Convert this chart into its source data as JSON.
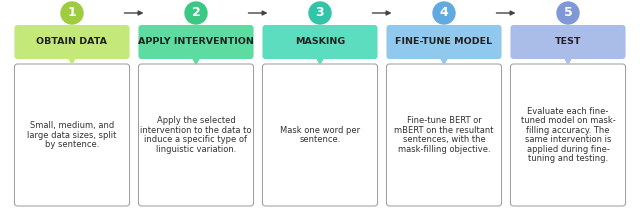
{
  "steps": [
    {
      "number": "1",
      "title": "OBTAIN DATA",
      "bubble_color": "#c5e87a",
      "circle_color": "#9ecc3e",
      "text": "Small, medium, and\nlarge data sizes, split\nby sentence.",
      "bold_words": []
    },
    {
      "number": "2",
      "title": "APPLY INTERVENTION",
      "bubble_color": "#5ddba0",
      "circle_color": "#3bc882",
      "text": "Apply the selected\nintervention to the data to\ninduce a specific type of\nlinguistic variation.",
      "bold_words": []
    },
    {
      "number": "3",
      "title": "MASKING",
      "bubble_color": "#5dddc0",
      "circle_color": "#30c4a8",
      "text": "Mask one word per\nsentence.",
      "bold_words": []
    },
    {
      "number": "4",
      "title": "FINE-TUNE MODEL",
      "bubble_color": "#90c8ee",
      "circle_color": "#60aae0",
      "text": "Fine-tune BERT or\nmBERT on the resultant\nsentences, with the\nmask-filling objective.",
      "bold_words": [
        "BERT",
        "mBERT"
      ]
    },
    {
      "number": "5",
      "title": "TEST",
      "bubble_color": "#aabce8",
      "circle_color": "#8098d8",
      "text": "Evaluate each fine-\ntuned model on mask-\nfilling accuracy. The\nsame intervention is\napplied during fine-\ntuning and testing.",
      "bold_words": []
    }
  ],
  "background_color": "#ffffff",
  "arrow_color": "#444444",
  "box_border_color": "#999999",
  "title_fontsize": 6.8,
  "body_fontsize": 6.0,
  "number_fontsize": 9
}
